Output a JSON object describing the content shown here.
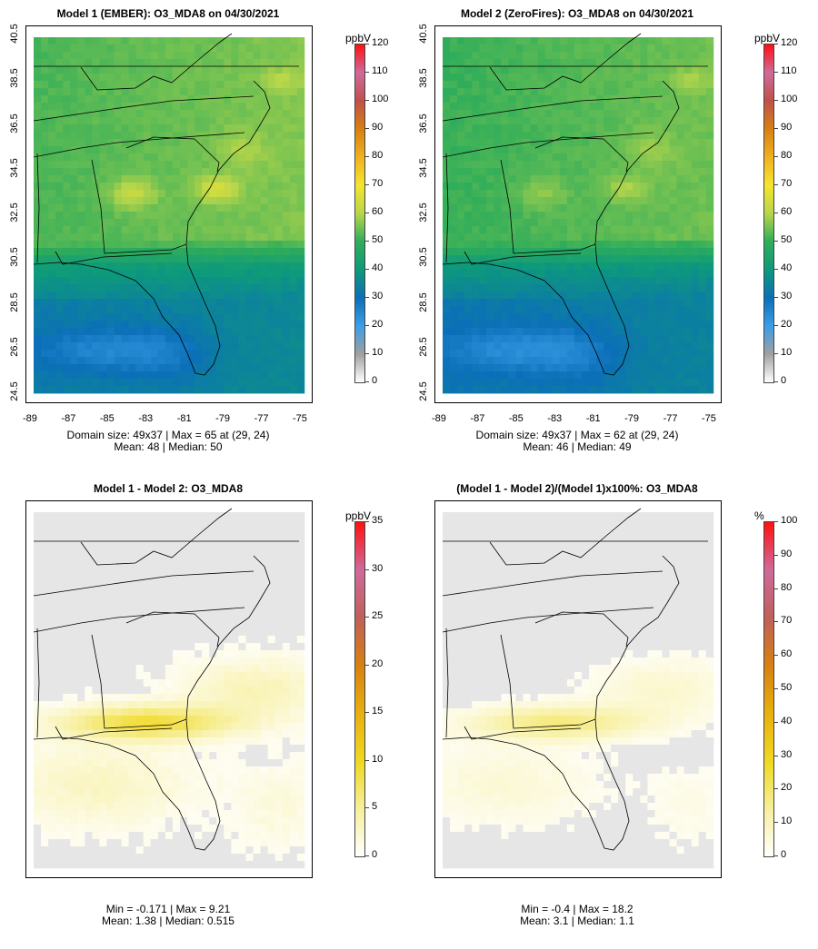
{
  "colors": {
    "ozone_scale": [
      "#ffffff",
      "#a0a0a0",
      "#3a9ee8",
      "#0b6fb8",
      "#0e9a7a",
      "#30ad5a",
      "#b8d64a",
      "#f5e52e",
      "#f0b020",
      "#d88010",
      "#c0504a",
      "#d06a9a",
      "#ff1010"
    ],
    "diff_scale": [
      "#ffffff",
      "#f7ef9a",
      "#f0d820",
      "#e8b010",
      "#d88010",
      "#c0605a",
      "#d06a9a",
      "#ff1010"
    ],
    "map_bg_diff": "#e6e6e6"
  },
  "chart_data": [
    {
      "type": "heatmap",
      "id": "model1",
      "title": "Model 1 (EMBER): O3_MDA8 on 04/30/2021",
      "legend_unit": "ppbV",
      "legend_ticks": [
        "0",
        "10",
        "20",
        "30",
        "40",
        "50",
        "60",
        "70",
        "80",
        "90",
        "100",
        "110",
        "120"
      ],
      "legend_range": [
        0,
        120
      ],
      "x_ticks": [
        "-89",
        "-87",
        "-85",
        "-83",
        "-81",
        "-79",
        "-77",
        "-75"
      ],
      "y_ticks": [
        "24.5",
        "26.5",
        "28.5",
        "30.5",
        "32.5",
        "34.5",
        "36.5",
        "38.5",
        "40.5"
      ],
      "stats_line1": "Domain size: 49x37 | Max = 65 at (29, 24)",
      "stats_line2": "Mean: 48 |  Median: 50",
      "max": 65,
      "mean": 48,
      "median": 50
    },
    {
      "type": "heatmap",
      "id": "model2",
      "title": "Model 2 (ZeroFires): O3_MDA8 on 04/30/2021",
      "legend_unit": "ppbV",
      "legend_ticks": [
        "0",
        "10",
        "20",
        "30",
        "40",
        "50",
        "60",
        "70",
        "80",
        "90",
        "100",
        "110",
        "120"
      ],
      "legend_range": [
        0,
        120
      ],
      "x_ticks": [
        "-89",
        "-87",
        "-85",
        "-83",
        "-81",
        "-79",
        "-77",
        "-75"
      ],
      "y_ticks": [
        "24.5",
        "26.5",
        "28.5",
        "30.5",
        "32.5",
        "34.5",
        "36.5",
        "38.5",
        "40.5"
      ],
      "stats_line1": "Domain size: 49x37 | Max = 62 at (29, 24)",
      "stats_line2": "Mean: 46 |  Median: 49",
      "max": 62,
      "mean": 46,
      "median": 49
    },
    {
      "type": "heatmap",
      "id": "diff",
      "title": "Model 1 - Model 2: O3_MDA8",
      "legend_unit": "ppbV",
      "legend_ticks": [
        "0",
        "5",
        "10",
        "15",
        "20",
        "25",
        "30",
        "35"
      ],
      "legend_range": [
        0,
        35
      ],
      "stats_line1": "Min = -0.171 | Max = 9.21",
      "stats_line2": "Mean: 1.38 |  Median: 0.515",
      "min": -0.171,
      "max": 9.21,
      "mean": 1.38,
      "median": 0.515
    },
    {
      "type": "heatmap",
      "id": "pct",
      "title": "(Model 1 - Model 2)/(Model 1)x100%: O3_MDA8",
      "legend_unit": "%",
      "legend_ticks": [
        "0",
        "10",
        "20",
        "30",
        "40",
        "50",
        "60",
        "70",
        "80",
        "90",
        "100"
      ],
      "legend_range": [
        0,
        100
      ],
      "stats_line1": "Min = -0.4 | Max = 18.2",
      "stats_line2": "Mean: 3.1 |  Median: 1.1",
      "min": -0.4,
      "max": 18.2,
      "mean": 3.1,
      "median": 1.1
    }
  ]
}
